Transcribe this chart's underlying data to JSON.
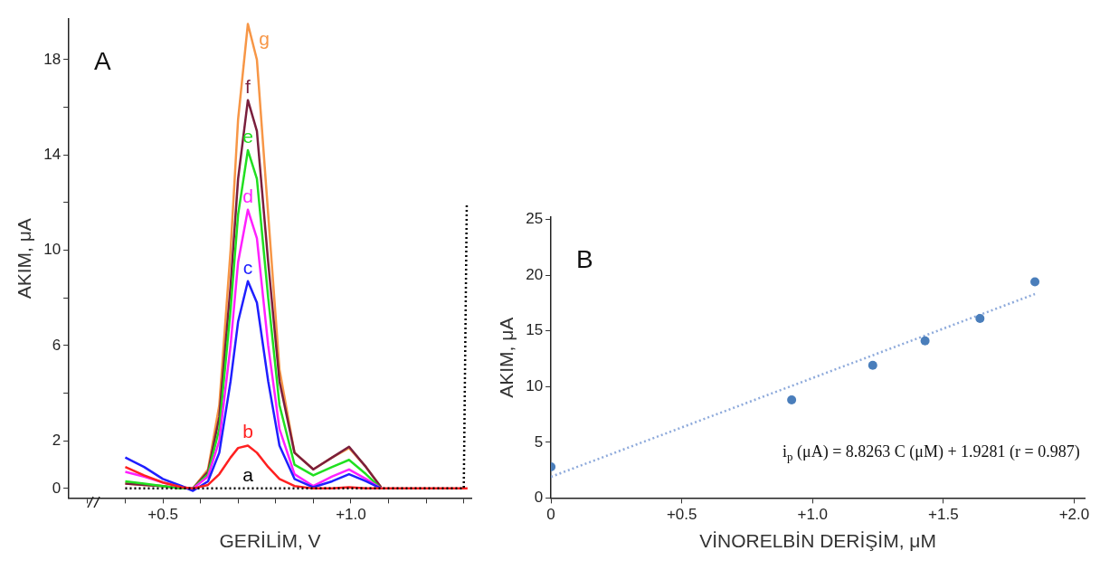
{
  "chart_data": [
    {
      "type": "line",
      "xlabel": "GERİLİM, V",
      "ylabel": "AKIM, μA",
      "xlim": [
        0.25,
        1.32
      ],
      "xticks": [
        {
          "value": 0.3,
          "label": null
        },
        {
          "value": 0.4,
          "label": null
        },
        {
          "value": 0.5,
          "label": "+0.5"
        },
        {
          "value": 0.6,
          "label": null
        },
        {
          "value": 0.7,
          "label": null
        },
        {
          "value": 0.8,
          "label": null
        },
        {
          "value": 0.9,
          "label": null
        },
        {
          "value": 1.0,
          "label": "+1.0"
        },
        {
          "value": 1.1,
          "label": null
        },
        {
          "value": 1.2,
          "label": null
        },
        {
          "value": 1.3,
          "label": null
        }
      ],
      "ylim": [
        -0.4,
        19.7
      ],
      "yticks": [
        0,
        2,
        {
          "value": 4,
          "label": null
        },
        6,
        {
          "value": 8,
          "label": null
        },
        10,
        {
          "value": 12,
          "label": null
        },
        14,
        {
          "value": 16,
          "label": null
        },
        18
      ],
      "grid": false,
      "legend": false,
      "marker": "none",
      "annotations": [
        "A"
      ],
      "x": [
        0.4,
        0.45,
        0.5,
        0.55,
        0.58,
        0.62,
        0.65,
        0.68,
        0.7,
        0.726,
        0.75,
        0.78,
        0.81,
        0.85,
        0.9,
        0.95,
        0.995,
        1.04,
        1.08,
        1.15,
        1.25,
        1.31
      ],
      "series": [
        {
          "name": "a",
          "color": "#000000",
          "line_style": "dotted",
          "x": [
            0.4,
            1.3,
            1.308
          ],
          "values": [
            0,
            0,
            12
          ]
        },
        {
          "name": "b",
          "color": "#ff2020",
          "values": [
            0.9,
            0.55,
            0.25,
            0.05,
            0,
            0.15,
            0.6,
            1.3,
            1.7,
            1.8,
            1.5,
            0.9,
            0.4,
            0.1,
            0,
            0,
            0.05,
            0,
            0,
            0,
            0,
            0
          ]
        },
        {
          "name": "c",
          "color": "#1f1fff",
          "values": [
            1.3,
            0.9,
            0.4,
            0.1,
            -0.1,
            0.3,
            1.5,
            4.5,
            7,
            8.7,
            7.8,
            4.5,
            1.8,
            0.4,
            0.05,
            0.3,
            0.6,
            0.3,
            0,
            null,
            null,
            null
          ]
        },
        {
          "name": "d",
          "color": "#ff20ff",
          "values": [
            0.7,
            0.5,
            0.25,
            0.05,
            0,
            0.5,
            2,
            6,
            9.5,
            11.7,
            10.5,
            6,
            2.5,
            0.6,
            0.1,
            0.5,
            0.8,
            0.4,
            0,
            null,
            null,
            null
          ]
        },
        {
          "name": "e",
          "color": "#20e020",
          "values": [
            0.3,
            0.2,
            0.1,
            0,
            0,
            0.6,
            2.5,
            7.5,
            11.5,
            14.2,
            13,
            8,
            3.5,
            1,
            0.55,
            0.9,
            1.2,
            0.6,
            0,
            null,
            null,
            null
          ]
        },
        {
          "name": "f",
          "color": "#7a1f3d",
          "values": [
            0.2,
            0.15,
            0.1,
            0,
            0,
            0.7,
            3,
            8.5,
            13,
            16.3,
            15,
            9.5,
            4.5,
            1.5,
            0.8,
            1.3,
            1.75,
            0.9,
            0.05,
            null,
            null,
            null
          ]
        },
        {
          "name": "g",
          "color": "#f79646",
          "values": [
            0.2,
            0.15,
            0.1,
            0,
            0,
            0.8,
            3.5,
            10,
            15.5,
            19.5,
            18,
            11.5,
            5,
            1.5,
            0.8,
            1.3,
            1.7,
            0.9,
            0.05,
            null,
            null,
            null
          ]
        }
      ]
    },
    {
      "type": "scatter",
      "xlabel": "VİNORELBİN DERİŞİM, μM",
      "ylabel": "AKIM, μA",
      "xlim": [
        0,
        2.04
      ],
      "xticks": [
        0,
        {
          "value": 0.5,
          "label": "+0.5"
        },
        {
          "value": 1.0,
          "label": "+1.0"
        },
        {
          "value": 1.5,
          "label": "+1.5"
        },
        {
          "value": 2.0,
          "label": "+2.0"
        }
      ],
      "ylim": [
        0,
        25.2
      ],
      "yticks": [
        0,
        5,
        10,
        15,
        20,
        25
      ],
      "grid": false,
      "legend": false,
      "annotations": [
        "B",
        "i$_{p}$ (μA) = 8.8263 C (μM) + 1.9281 (r = 0.987)"
      ],
      "series": [
        {
          "type": "scatter",
          "color": "#4a7ebb",
          "marker": "circle",
          "x": [
            0,
            0.92,
            1.23,
            1.43,
            1.64,
            1.85
          ],
          "values": [
            2.8,
            8.8,
            11.9,
            14.1,
            16.1,
            19.4
          ]
        },
        {
          "type": "line",
          "color": "#8eaadb",
          "line_style": "dotted",
          "marker": "none",
          "x": [
            0,
            1.85
          ],
          "values": [
            1.9,
            18.3
          ]
        }
      ]
    }
  ]
}
